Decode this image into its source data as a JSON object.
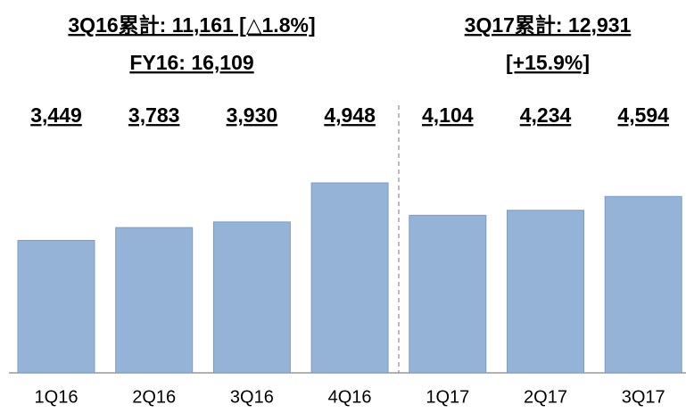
{
  "chart_data": {
    "type": "bar",
    "annotations": [
      "3Q16累計: 11,161 [△1.8%]",
      "FY16: 16,109",
      "3Q17累計: 12,931",
      "[+15.9%]"
    ],
    "categories": [
      "1Q16",
      "2Q16",
      "3Q16",
      "4Q16",
      "1Q17",
      "2Q17",
      "3Q17"
    ],
    "values": [
      3449,
      3783,
      3930,
      4948,
      4104,
      4234,
      4594
    ],
    "value_labels": [
      "3,449",
      "3,783",
      "3,930",
      "4,948",
      "4,104",
      "4,234",
      "4,594"
    ],
    "color": "#95b3d7"
  }
}
